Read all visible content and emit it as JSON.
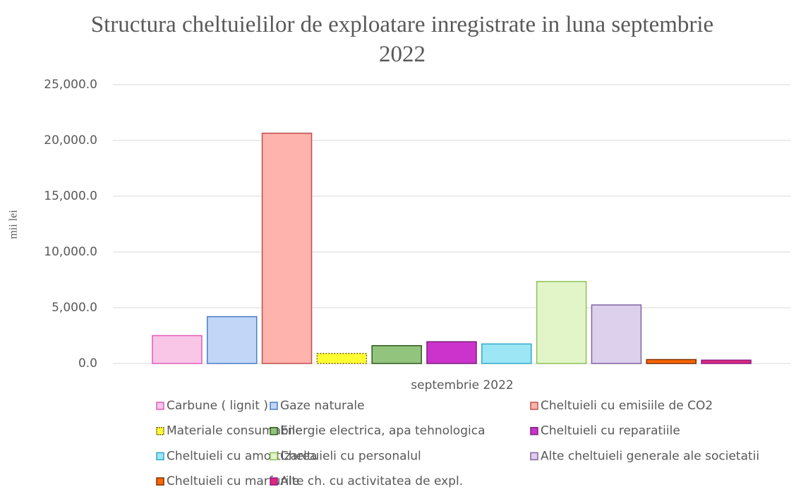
{
  "chart_data": {
    "type": "bar",
    "title": "Structura cheltuielilor de exploatare inregistrate in luna septembrie 2022",
    "ylabel": "mii lei",
    "categories": [
      "septembrie 2022"
    ],
    "series": [
      {
        "name": "Carbune ( lignit )",
        "color": "#f9c6e8",
        "edgecolor": "#e35bb8",
        "values": [
          2500
        ]
      },
      {
        "name": "Gaze naturale",
        "color": "#c2d6f7",
        "edgecolor": "#4a7ec4",
        "values": [
          4200
        ]
      },
      {
        "name": "Cheltuieli cu emisiile de CO2",
        "color": "#ffb3ad",
        "edgecolor": "#c0504d",
        "values": [
          20650
        ]
      },
      {
        "name": "Materiale consumabile",
        "color": "#ffff33",
        "edgecolor": "#7f6000",
        "dashed": true,
        "values": [
          900
        ]
      },
      {
        "name": "Energie electrica, apa tehnologica",
        "color": "#93c47d",
        "edgecolor": "#2e5a1c",
        "values": [
          1600
        ]
      },
      {
        "name": "Cheltuieli cu reparatiile",
        "color": "#cc33cc",
        "edgecolor": "#7a1f7a",
        "values": [
          1950
        ]
      },
      {
        "name": "Cheltuieli cu amortizarea",
        "color": "#9de6f5",
        "edgecolor": "#31a9c9",
        "values": [
          1750
        ]
      },
      {
        "name": "Cheltuieli cu personalul",
        "color": "#e2f5c8",
        "edgecolor": "#8dc05a",
        "values": [
          7350
        ]
      },
      {
        "name": "Alte cheltuieli generale ale societatii",
        "color": "#dcd0ec",
        "edgecolor": "#8064a2",
        "values": [
          5250
        ]
      },
      {
        "name": "Cheltuieli cu marfurile",
        "color": "#ff6600",
        "edgecolor": "#7f2f00",
        "values": [
          350
        ]
      },
      {
        "name": "Alte ch. cu activitatea de expl.",
        "color": "#e0287a",
        "edgecolor": "#8b1a8b",
        "values": [
          300
        ]
      }
    ],
    "ylim": [
      0,
      25000
    ],
    "yticks": [
      {
        "value": 0,
        "label": "0.0"
      },
      {
        "value": 5000,
        "label": "5,000.0"
      },
      {
        "value": 10000,
        "label": "10,000.0"
      },
      {
        "value": 15000,
        "label": "15,000.0"
      },
      {
        "value": 20000,
        "label": "20,000.0"
      },
      {
        "value": 25000,
        "label": "25,000.0"
      }
    ],
    "grid": true
  }
}
